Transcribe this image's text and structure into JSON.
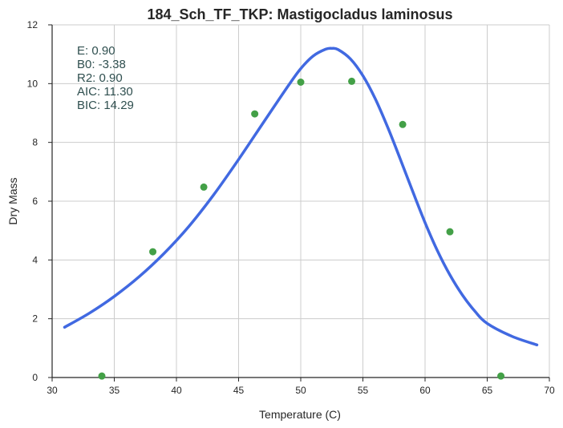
{
  "chart_data": {
    "type": "scatter",
    "title": "184_Sch_TF_TKP: Mastigocladus laminosus",
    "xlabel": "Temperature (C)",
    "ylabel": "Dry Mass",
    "xlim": [
      30,
      70
    ],
    "ylim": [
      0,
      12
    ],
    "xticks": [
      "30",
      "35",
      "40",
      "45",
      "50",
      "55",
      "60",
      "65",
      "70"
    ],
    "yticks": [
      "0",
      "2",
      "4",
      "6",
      "8",
      "10",
      "12"
    ],
    "grid": true,
    "colors": {
      "points": "#43a047",
      "curve": "#4169e1"
    },
    "points": {
      "x": [
        34.0,
        38.1,
        42.2,
        46.3,
        50.0,
        54.1,
        58.2,
        62.0,
        66.1
      ],
      "y": [
        0.05,
        4.28,
        6.48,
        8.97,
        10.05,
        10.08,
        8.61,
        4.96,
        0.05
      ]
    },
    "fit_curve": {
      "x": [
        31,
        33,
        35,
        37,
        39,
        41,
        43,
        45,
        47,
        49,
        50,
        51,
        52,
        52.5,
        53,
        54,
        55,
        56,
        57,
        58,
        59,
        60,
        61,
        62,
        63,
        64,
        65,
        67,
        69
      ],
      "y": [
        1.71,
        2.19,
        2.76,
        3.43,
        4.22,
        5.14,
        6.22,
        7.42,
        8.68,
        9.93,
        10.51,
        10.94,
        11.17,
        11.2,
        11.16,
        10.84,
        10.27,
        9.48,
        8.51,
        7.44,
        6.34,
        5.27,
        4.31,
        3.49,
        2.81,
        2.26,
        1.84,
        1.4,
        1.11
      ]
    },
    "stats": {
      "E": "E:  0.90",
      "B0": "B0:  -3.38",
      "R2": "R2:  0.90",
      "AIC": "AIC: 11.30",
      "BIC": "BIC: 14.29"
    }
  }
}
